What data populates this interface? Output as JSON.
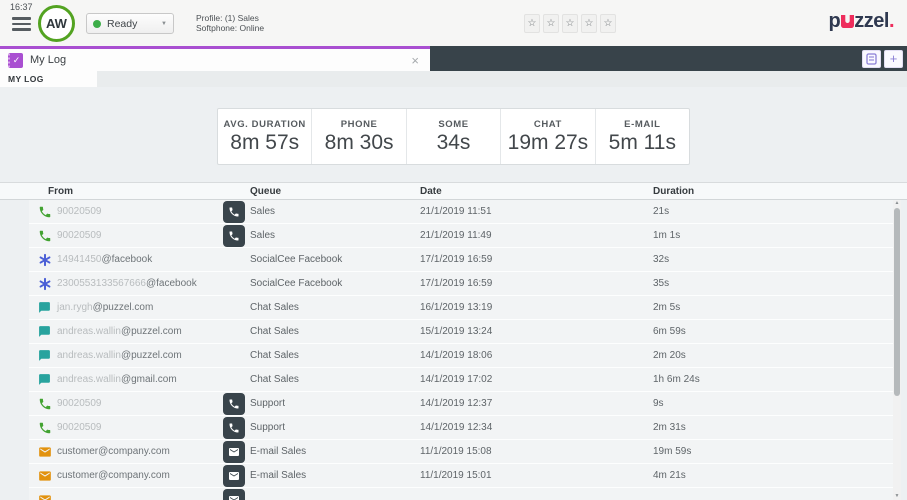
{
  "topbar": {
    "time": "16:37",
    "avatar_initials": "AW",
    "status_label": "Ready",
    "profile_line1": "Profile: (1) Sales",
    "profile_line2": "Softphone: Online",
    "stars_count": 5,
    "logo_p": "p",
    "logo_zzel": "zzel",
    "logo_dot": "."
  },
  "tabs": {
    "active_tab": "My Log",
    "subtab": "MY LOG"
  },
  "icons": {
    "star": "☆",
    "caret": "▼",
    "close": "×",
    "plus": "+",
    "check": "✓",
    "arrow_up": "▲",
    "arrow_down": "▼"
  },
  "colors": {
    "accent_purple": "#a94fd1",
    "brand_navy": "#2f3950",
    "brand_pink": "#ee2d5c",
    "status_green": "#3dae49",
    "phone": "#43a332",
    "some": "#4b5fd6",
    "chat": "#28a39e",
    "email": "#e2920e",
    "queue_badge": "#ffffff"
  },
  "stats": [
    {
      "label": "AVG. DURATION",
      "value": "8m 57s"
    },
    {
      "label": "PHONE",
      "value": "8m 30s"
    },
    {
      "label": "SOME",
      "value": "34s"
    },
    {
      "label": "CHAT",
      "value": "19m 27s"
    },
    {
      "label": "E-MAIL",
      "value": "5m 11s"
    }
  ],
  "table": {
    "columns": [
      "From",
      "Queue",
      "Date",
      "Duration"
    ],
    "rows": [
      {
        "type": "phone",
        "from_blur": "90020509",
        "from_rest": "",
        "queue_icon": "phone",
        "queue": "Sales",
        "date": "21/1/2019 11:51",
        "duration": "21s"
      },
      {
        "type": "phone",
        "from_blur": "90020509",
        "from_rest": "",
        "queue_icon": "phone",
        "queue": "Sales",
        "date": "21/1/2019 11:49",
        "duration": "1m 1s"
      },
      {
        "type": "some",
        "from_blur": "14941450",
        "from_rest": "@facebook",
        "queue_icon": "none",
        "queue": "SocialCee Facebook",
        "date": "17/1/2019 16:59",
        "duration": "32s"
      },
      {
        "type": "some",
        "from_blur": "2300553133567666",
        "from_rest": "@facebook",
        "queue_icon": "none",
        "queue": "SocialCee Facebook",
        "date": "17/1/2019 16:59",
        "duration": "35s"
      },
      {
        "type": "chat",
        "from_blur": "jan.rygh",
        "from_rest": "@puzzel.com",
        "queue_icon": "none",
        "queue": "Chat Sales",
        "date": "16/1/2019 13:19",
        "duration": "2m 5s"
      },
      {
        "type": "chat",
        "from_blur": "andreas.wallin",
        "from_rest": "@puzzel.com",
        "queue_icon": "none",
        "queue": "Chat Sales",
        "date": "15/1/2019 13:24",
        "duration": "6m 59s"
      },
      {
        "type": "chat",
        "from_blur": "andreas.wallin",
        "from_rest": "@puzzel.com",
        "queue_icon": "none",
        "queue": "Chat Sales",
        "date": "14/1/2019 18:06",
        "duration": "2m 20s"
      },
      {
        "type": "chat",
        "from_blur": "andreas.wallin",
        "from_rest": "@gmail.com",
        "queue_icon": "none",
        "queue": "Chat Sales",
        "date": "14/1/2019 17:02",
        "duration": "1h 6m 24s"
      },
      {
        "type": "phone",
        "from_blur": "90020509",
        "from_rest": "",
        "queue_icon": "phone",
        "queue": "Support",
        "date": "14/1/2019 12:37",
        "duration": "9s"
      },
      {
        "type": "phone",
        "from_blur": "90020509",
        "from_rest": "",
        "queue_icon": "phone",
        "queue": "Support",
        "date": "14/1/2019 12:34",
        "duration": "2m 31s"
      },
      {
        "type": "email",
        "from_blur": "",
        "from_rest": "customer@company.com",
        "queue_icon": "email",
        "queue": "E-mail Sales",
        "date": "11/1/2019 15:08",
        "duration": "19m 59s"
      },
      {
        "type": "email",
        "from_blur": "",
        "from_rest": "customer@company.com",
        "queue_icon": "email",
        "queue": "E-mail Sales",
        "date": "11/1/2019 15:01",
        "duration": "4m 21s"
      },
      {
        "type": "email",
        "from_blur": "",
        "from_rest": "",
        "queue_icon": "email",
        "queue": "",
        "date": "",
        "duration": "",
        "partial": true
      }
    ]
  }
}
